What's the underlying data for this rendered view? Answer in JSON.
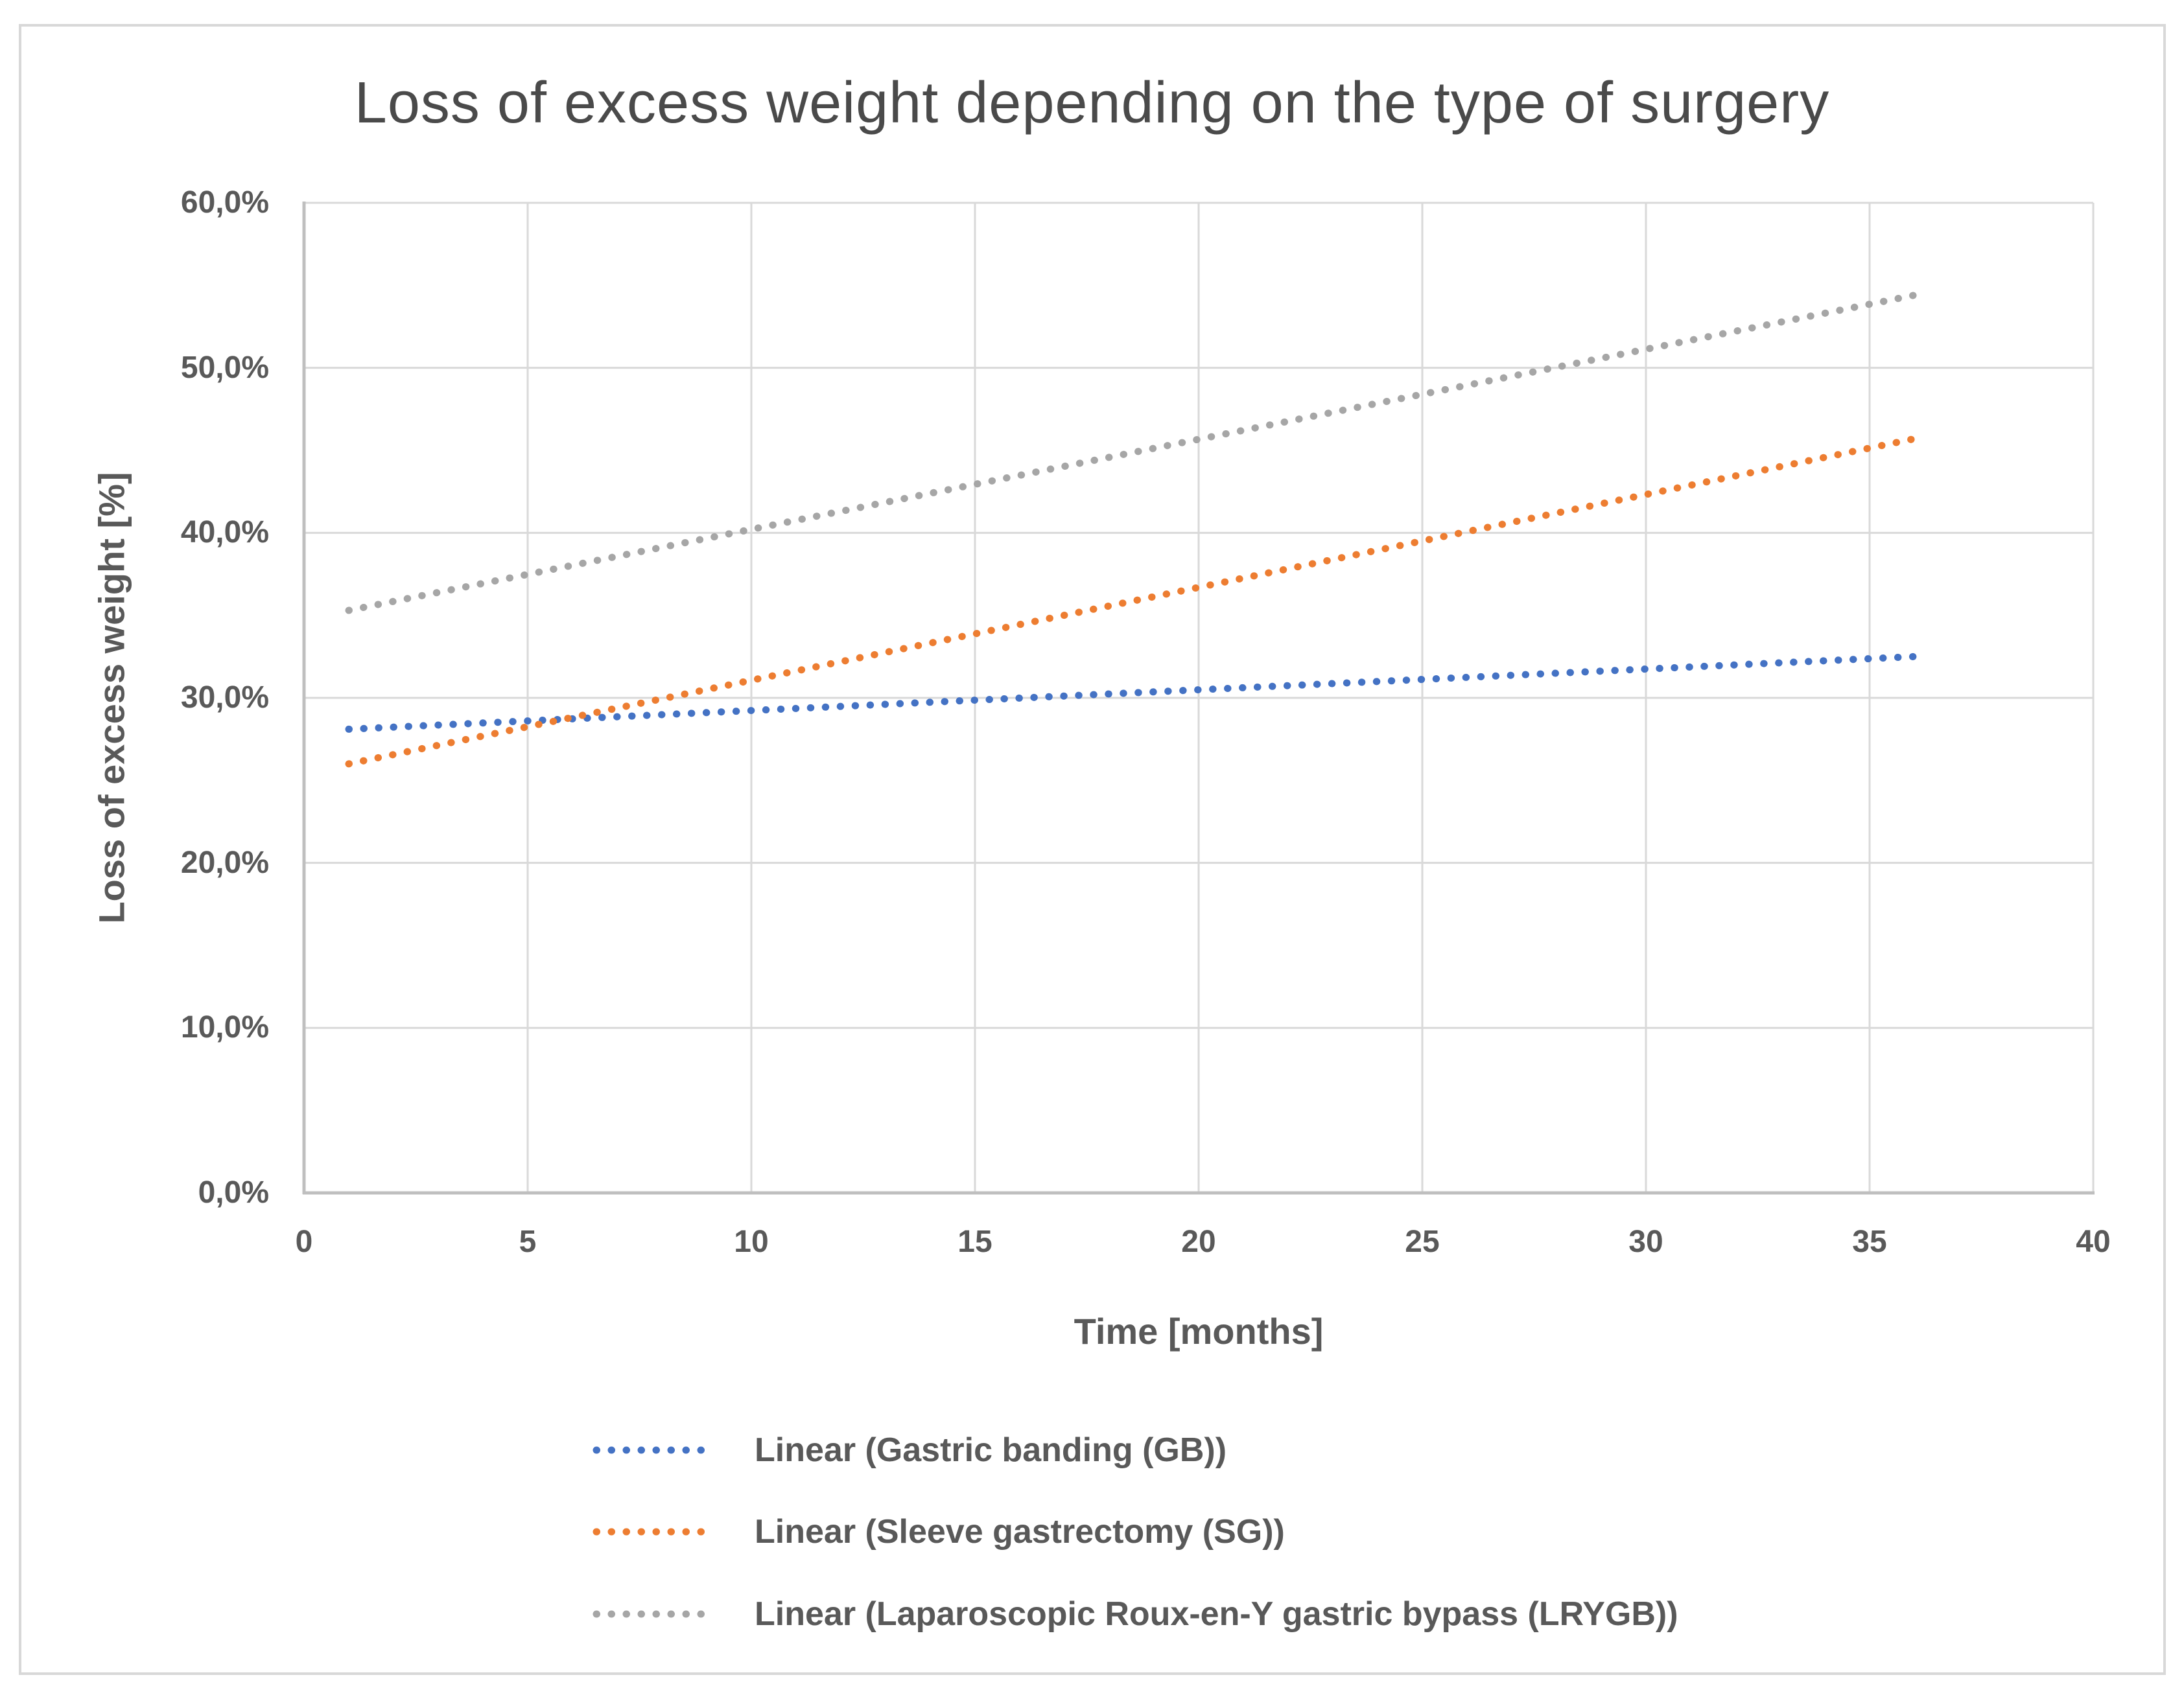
{
  "chart": {
    "title": "Loss of excess weight depending on the type of surgery",
    "x_axis_title": "Time [months]",
    "y_axis_title": "Loss of excess weight [%]"
  },
  "chart_data": {
    "type": "line",
    "subtype": "dotted-linear-trendlines",
    "title": "Loss of excess weight depending on the type of surgery",
    "xlabel": "Time [months]",
    "ylabel": "Loss of excess weight [%]",
    "xlim": [
      0,
      40
    ],
    "ylim_percent": [
      0,
      60
    ],
    "grid": true,
    "legend_position": "bottom",
    "decimal_separator": ",",
    "x_ticks": [
      {
        "value": 0,
        "label": "0"
      },
      {
        "value": 5,
        "label": "5"
      },
      {
        "value": 10,
        "label": "10"
      },
      {
        "value": 15,
        "label": "15"
      },
      {
        "value": 20,
        "label": "20"
      },
      {
        "value": 25,
        "label": "25"
      },
      {
        "value": 30,
        "label": "30"
      },
      {
        "value": 35,
        "label": "35"
      },
      {
        "value": 40,
        "label": "40"
      }
    ],
    "y_ticks": [
      {
        "value": 0,
        "label": "0,0%"
      },
      {
        "value": 10,
        "label": "10,0%"
      },
      {
        "value": 20,
        "label": "20,0%"
      },
      {
        "value": 30,
        "label": "30,0%"
      },
      {
        "value": 40,
        "label": "40,0%"
      },
      {
        "value": 50,
        "label": "50,0%"
      },
      {
        "value": 60,
        "label": "60,0%"
      }
    ],
    "series": [
      {
        "name": "Linear (Gastric banding (GB))",
        "slug": "gastric-banding-gb",
        "color": "#4472C4",
        "line_style": "dotted",
        "trend": {
          "x1": 1,
          "y1_percent": 28.1,
          "x2": 36,
          "y2_percent": 32.5
        }
      },
      {
        "name": "Linear (Sleeve gastrectomy (SG))",
        "slug": "sleeve-gastrectomy-sg",
        "color": "#ED7D31",
        "line_style": "dotted",
        "trend": {
          "x1": 1,
          "y1_percent": 26.0,
          "x2": 36,
          "y2_percent": 45.7
        }
      },
      {
        "name": "Linear (Laparoscopic Roux-en-Y gastric bypass (LRYGB))",
        "slug": "laparoscopic-roux-en-y-gastric-bypass-lrygb",
        "color": "#A6A6A6",
        "line_style": "dotted",
        "trend": {
          "x1": 1,
          "y1_percent": 35.3,
          "x2": 36,
          "y2_percent": 54.4
        }
      }
    ]
  },
  "colors": {
    "text": "#595959",
    "title_text": "#4a4a4a",
    "gridline": "#D9D9D9",
    "axis_line": "#BFBFBF",
    "background": "#FFFFFF",
    "frame_border": "#D8D8D8"
  }
}
